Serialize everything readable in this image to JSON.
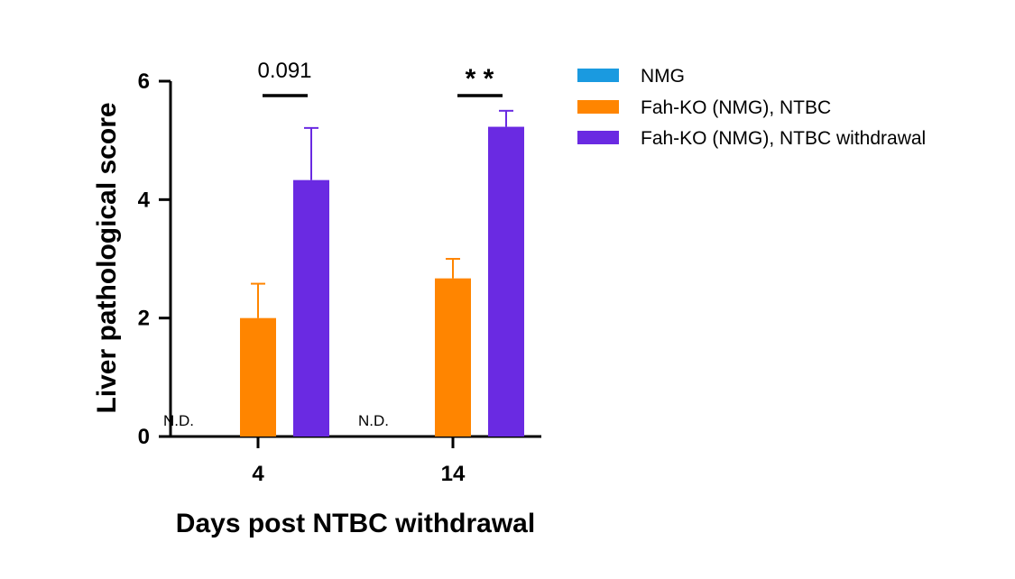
{
  "chart_data": {
    "type": "bar",
    "xlabel": "Days post NTBC withdrawal",
    "ylabel": "Liver pathological score",
    "categories": [
      "4",
      "14"
    ],
    "ylim": [
      0,
      6
    ],
    "yticks": [
      0,
      2,
      4,
      6
    ],
    "grid": false,
    "legend_position": "top-right",
    "series": [
      {
        "name": "NMG",
        "color": "#1a9ae0",
        "values": [
          0,
          0
        ],
        "errors": [
          0,
          0
        ],
        "labels": [
          "N.D.",
          "N.D."
        ]
      },
      {
        "name": "Fah-KO (NMG), NTBC",
        "color": "#ff8500",
        "values": [
          2.0,
          2.67
        ],
        "errors": [
          0.58,
          0.33
        ]
      },
      {
        "name": "Fah-KO (NMG), NTBC withdrawal",
        "color": "#6a2ae2",
        "values": [
          4.33,
          5.23
        ],
        "errors": [
          0.88,
          0.27
        ]
      }
    ],
    "annotations": [
      {
        "category": "4",
        "text": "0.091",
        "style": "pvalue"
      },
      {
        "category": "14",
        "text": "* *",
        "style": "stars"
      }
    ]
  }
}
